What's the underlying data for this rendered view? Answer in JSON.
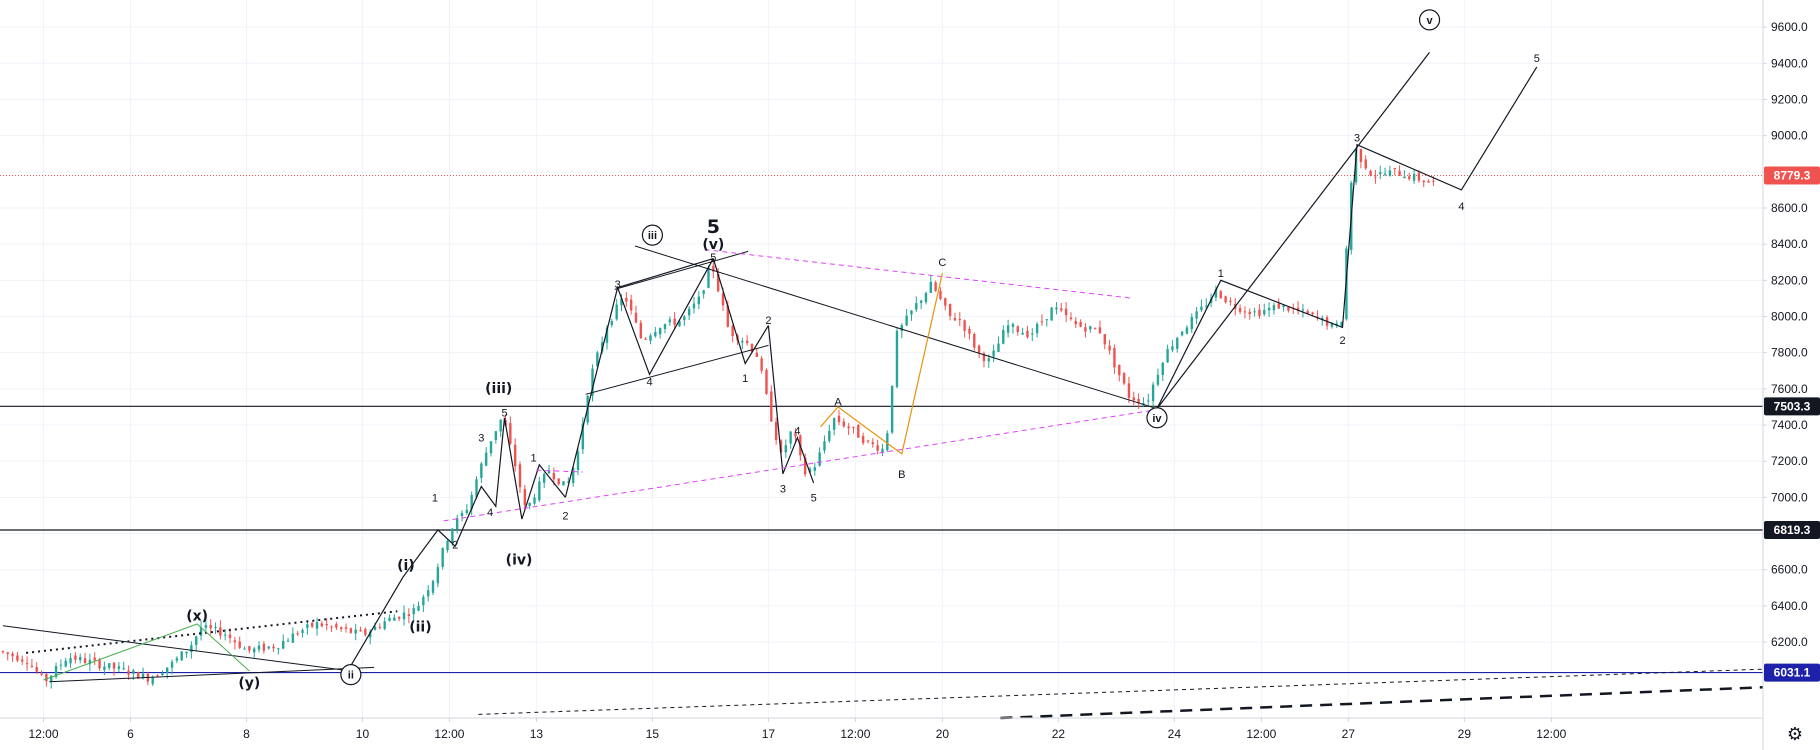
{
  "chart_data": {
    "type": "candlestick",
    "title": "",
    "ylim": [
      5780,
      9750
    ],
    "y_ticks": [
      6200,
      6400,
      6600,
      6800,
      7000,
      7200,
      7400,
      7600,
      7800,
      8000,
      8200,
      8400,
      8600,
      8800,
      9000,
      9200,
      9400,
      9600
    ],
    "y_tick_labels": [
      "6200.0",
      "6400.0",
      "6600.0",
      "6800.0",
      "7000.0",
      "7200.0",
      "7400.0",
      "7600.0",
      "7800.0",
      "8000.0",
      "8200.0",
      "8400.0",
      "8600.0",
      "8800.0",
      "9000.0",
      "9200.0",
      "9400.0",
      "9600.0"
    ],
    "x_range_days": [
      -0.25,
      30.15
    ],
    "x_ticks": [
      {
        "day": 0.5,
        "label": "12:00"
      },
      {
        "day": 2,
        "label": "6"
      },
      {
        "day": 4,
        "label": "8"
      },
      {
        "day": 6,
        "label": "10"
      },
      {
        "day": 7.5,
        "label": "12:00"
      },
      {
        "day": 9,
        "label": "13"
      },
      {
        "day": 11,
        "label": "15"
      },
      {
        "day": 13,
        "label": "17"
      },
      {
        "day": 14.5,
        "label": "12:00"
      },
      {
        "day": 16,
        "label": "20"
      },
      {
        "day": 18,
        "label": "22"
      },
      {
        "day": 20,
        "label": "24"
      },
      {
        "day": 21.5,
        "label": "12:00"
      },
      {
        "day": 23,
        "label": "27"
      },
      {
        "day": 25,
        "label": "29"
      },
      {
        "day": 26.5,
        "label": "12:00"
      }
    ],
    "price_path": [
      [
        -0.2,
        6150
      ],
      [
        0.3,
        6100
      ],
      [
        0.6,
        5980
      ],
      [
        1.0,
        6120
      ],
      [
        1.5,
        6080
      ],
      [
        2.0,
        6040
      ],
      [
        2.4,
        6000
      ],
      [
        2.8,
        6080
      ],
      [
        3.1,
        6170
      ],
      [
        3.3,
        6280
      ],
      [
        3.7,
        6250
      ],
      [
        4.1,
        6150
      ],
      [
        4.6,
        6180
      ],
      [
        5.0,
        6260
      ],
      [
        5.3,
        6300
      ],
      [
        5.7,
        6270
      ],
      [
        6.1,
        6240
      ],
      [
        6.5,
        6320
      ],
      [
        7.0,
        6380
      ],
      [
        7.3,
        6550
      ],
      [
        7.6,
        6820
      ],
      [
        7.9,
        6950
      ],
      [
        8.1,
        7150
      ],
      [
        8.3,
        7320
      ],
      [
        8.5,
        7450
      ],
      [
        8.7,
        7200
      ],
      [
        8.9,
        6920
      ],
      [
        9.1,
        7050
      ],
      [
        9.3,
        7150
      ],
      [
        9.6,
        7050
      ],
      [
        9.8,
        7250
      ],
      [
        10.0,
        7650
      ],
      [
        10.3,
        7950
      ],
      [
        10.6,
        8120
      ],
      [
        10.9,
        7870
      ],
      [
        11.2,
        7950
      ],
      [
        11.6,
        7980
      ],
      [
        11.9,
        8100
      ],
      [
        12.1,
        8300
      ],
      [
        12.4,
        7920
      ],
      [
        12.7,
        7860
      ],
      [
        12.9,
        7780
      ],
      [
        13.1,
        7480
      ],
      [
        13.3,
        7230
      ],
      [
        13.5,
        7380
      ],
      [
        13.7,
        7130
      ],
      [
        13.9,
        7180
      ],
      [
        14.2,
        7440
      ],
      [
        14.5,
        7380
      ],
      [
        14.8,
        7300
      ],
      [
        15.1,
        7260
      ],
      [
        15.3,
        7900
      ],
      [
        15.6,
        8050
      ],
      [
        15.9,
        8180
      ],
      [
        16.2,
        8000
      ],
      [
        16.4,
        7980
      ],
      [
        16.7,
        7800
      ],
      [
        16.9,
        7750
      ],
      [
        17.2,
        7950
      ],
      [
        17.6,
        7900
      ],
      [
        18.0,
        8050
      ],
      [
        18.4,
        7950
      ],
      [
        18.8,
        7920
      ],
      [
        19.1,
        7700
      ],
      [
        19.3,
        7560
      ],
      [
        19.6,
        7520
      ],
      [
        19.9,
        7780
      ],
      [
        20.2,
        7920
      ],
      [
        20.5,
        8020
      ],
      [
        20.8,
        8140
      ],
      [
        21.1,
        8060
      ],
      [
        21.5,
        8020
      ],
      [
        21.9,
        8060
      ],
      [
        22.3,
        8020
      ],
      [
        22.7,
        7970
      ],
      [
        22.85,
        7930
      ],
      [
        23.0,
        8000
      ],
      [
        23.08,
        8600
      ],
      [
        23.2,
        8920
      ],
      [
        23.5,
        8780
      ],
      [
        23.9,
        8800
      ],
      [
        24.3,
        8760
      ],
      [
        24.5,
        8740
      ]
    ],
    "waves": {
      "labels": [
        {
          "id": "ii_circ",
          "text": "ii",
          "day": 5.8,
          "price": 6020,
          "circled": true
        },
        {
          "id": "x_green",
          "text": "(x)",
          "day": 3.15,
          "price": 6340,
          "color": "#2e7d32",
          "bold": true
        },
        {
          "id": "y_green",
          "text": "(y)",
          "day": 4.05,
          "price": 5970,
          "color": "#2e7d32",
          "bold": true
        },
        {
          "id": "i_lbl",
          "text": "(i)",
          "day": 6.75,
          "price": 6620,
          "bold": true
        },
        {
          "id": "ii_lbl",
          "text": "(ii)",
          "day": 7.0,
          "price": 6280,
          "bold": true
        },
        {
          "id": "iii_lbl",
          "text": "(iii)",
          "day": 8.35,
          "price": 7600,
          "bold": true
        },
        {
          "id": "iv_lbl",
          "text": "(iv)",
          "day": 8.7,
          "price": 6650,
          "bold": true
        },
        {
          "id": "iii_circ",
          "text": "iii",
          "day": 11.0,
          "price": 8450,
          "circled": true
        },
        {
          "id": "v_top",
          "text": "(v)",
          "day": 12.05,
          "price": 8395,
          "bold": true
        },
        {
          "id": "five_big",
          "text": "5",
          "day": 12.05,
          "price": 8485,
          "bold": true,
          "big": true
        },
        {
          "id": "iv_circ",
          "text": "iv",
          "day": 19.7,
          "price": 7440,
          "circled": true
        },
        {
          "id": "v_circ",
          "text": "v",
          "day": 24.4,
          "price": 9640,
          "circled": true
        },
        {
          "id": "A_org",
          "text": "A",
          "day": 14.2,
          "price": 7530,
          "color": "#e6930c"
        },
        {
          "id": "B_org",
          "text": "B",
          "day": 15.3,
          "price": 7130,
          "color": "#e6930c"
        },
        {
          "id": "C_org",
          "text": "C",
          "day": 16.0,
          "price": 8300,
          "color": "#e6930c"
        },
        {
          "id": "s1a",
          "text": "1",
          "day": 7.25,
          "price": 7000
        },
        {
          "id": "s2a",
          "text": "2",
          "day": 7.6,
          "price": 6740
        },
        {
          "id": "s3a",
          "text": "3",
          "day": 8.05,
          "price": 7330
        },
        {
          "id": "s4a",
          "text": "4",
          "day": 8.2,
          "price": 6920
        },
        {
          "id": "s5a",
          "text": "5",
          "day": 8.45,
          "price": 7470
        },
        {
          "id": "s1b",
          "text": "1",
          "day": 8.95,
          "price": 7220
        },
        {
          "id": "s2b",
          "text": "2",
          "day": 9.5,
          "price": 6900
        },
        {
          "id": "s3b",
          "text": "3",
          "day": 10.4,
          "price": 8180
        },
        {
          "id": "s4b",
          "text": "4",
          "day": 10.95,
          "price": 7640
        },
        {
          "id": "s5b",
          "text": "5",
          "day": 12.05,
          "price": 8330
        },
        {
          "id": "s1c",
          "text": "1",
          "day": 12.6,
          "price": 7660
        },
        {
          "id": "s2c",
          "text": "2",
          "day": 13.0,
          "price": 7980
        },
        {
          "id": "s3c",
          "text": "3",
          "day": 13.25,
          "price": 7050
        },
        {
          "id": "s4c",
          "text": "4",
          "day": 13.5,
          "price": 7370
        },
        {
          "id": "s5c",
          "text": "5",
          "day": 13.78,
          "price": 7000
        },
        {
          "id": "s1d",
          "text": "1",
          "day": 20.8,
          "price": 8240
        },
        {
          "id": "s2d",
          "text": "2",
          "day": 22.9,
          "price": 7870
        },
        {
          "id": "s3d",
          "text": "3",
          "day": 23.15,
          "price": 8990
        },
        {
          "id": "s4d",
          "text": "4",
          "day": 24.95,
          "price": 8610
        },
        {
          "id": "s5d",
          "text": "5",
          "day": 26.25,
          "price": 9430
        }
      ],
      "black_lines": [
        [
          [
            5.8,
            6070
          ],
          [
            6.7,
            6560
          ],
          [
            7.3,
            6820
          ],
          [
            7.6,
            6730
          ],
          [
            8.05,
            7060
          ],
          [
            8.3,
            6950
          ],
          [
            8.45,
            7440
          ],
          [
            8.75,
            6880
          ]
        ],
        [
          [
            8.75,
            6880
          ],
          [
            9.05,
            7180
          ],
          [
            9.5,
            7000
          ]
        ],
        [
          [
            9.5,
            7000
          ],
          [
            10.4,
            8160
          ],
          [
            10.95,
            7680
          ],
          [
            12.05,
            8320
          ]
        ],
        [
          [
            10.4,
            8160
          ],
          [
            12.05,
            8320
          ]
        ],
        [
          [
            12.05,
            8320
          ],
          [
            12.6,
            7740
          ],
          [
            13.0,
            7950
          ]
        ],
        [
          [
            13.0,
            7950
          ],
          [
            13.25,
            7130
          ],
          [
            13.5,
            7330
          ],
          [
            13.78,
            7080
          ]
        ],
        [
          [
            19.7,
            7490
          ],
          [
            20.8,
            8200
          ],
          [
            22.9,
            7940
          ],
          [
            23.15,
            8950
          ],
          [
            24.95,
            8700
          ],
          [
            26.25,
            9380
          ]
        ],
        [
          [
            19.7,
            7490
          ],
          [
            24.4,
            9460
          ]
        ]
      ],
      "trend_lines": [
        [
          [
            -0.2,
            6290
          ],
          [
            5.8,
            6040
          ]
        ],
        [
          [
            0.6,
            5980
          ],
          [
            6.2,
            6060
          ]
        ],
        [
          [
            10.7,
            8390
          ],
          [
            19.7,
            7490
          ]
        ],
        [
          [
            9.85,
            7570
          ],
          [
            13.0,
            7840
          ]
        ],
        [
          [
            10.35,
            8150
          ],
          [
            12.65,
            8360
          ]
        ]
      ],
      "dotted_line": [
        [
          0.2,
          6140
        ],
        [
          6.6,
          6370
        ]
      ],
      "magenta_lines": [
        [
          [
            7.4,
            6870
          ],
          [
            19.6,
            7480
          ]
        ],
        [
          [
            11.9,
            8370
          ],
          [
            19.3,
            8100
          ]
        ],
        [
          [
            9.0,
            7150
          ],
          [
            9.8,
            7140
          ]
        ]
      ],
      "orange_lines": [
        [
          [
            13.9,
            7390
          ],
          [
            14.2,
            7500
          ],
          [
            15.3,
            7240
          ],
          [
            16.0,
            8240
          ]
        ]
      ],
      "green_lines": [
        [
          [
            0.5,
            5990
          ],
          [
            3.15,
            6300
          ],
          [
            4.05,
            6040
          ]
        ]
      ],
      "bottom_lines": [
        {
          "from": [
            8.0,
            5800
          ],
          "to": [
            30.15,
            6050
          ],
          "style": "dashed-thin"
        },
        {
          "from": [
            17.0,
            5780
          ],
          "to": [
            30.15,
            5950
          ],
          "style": "dashed-thick"
        }
      ]
    },
    "levels": [
      {
        "price": 8779.3,
        "label": "8779.3",
        "color": "#ef5350",
        "style": "dotted"
      },
      {
        "price": 7503.3,
        "label": "7503.3",
        "color": "#131722",
        "style": "solid"
      },
      {
        "price": 6819.3,
        "label": "6819.3",
        "color": "#131722",
        "style": "solid"
      },
      {
        "price": 6031.1,
        "label": "6031.1",
        "color": "#1e22aa",
        "style": "solid"
      }
    ],
    "candle_colors": {
      "up": "#26a69a",
      "down": "#ef5350"
    }
  },
  "icons": {
    "settings": "gear-icon"
  }
}
